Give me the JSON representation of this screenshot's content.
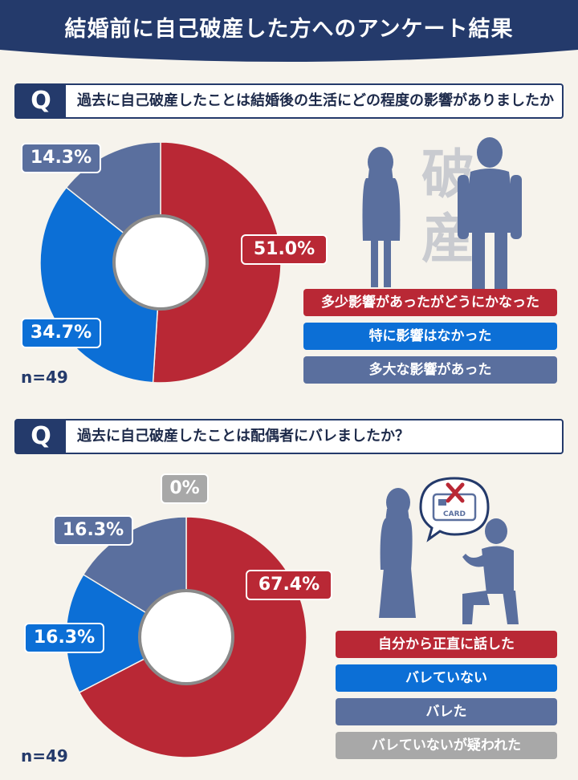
{
  "title": "結婚前に自己破産した方へのアンケート結果",
  "colors": {
    "navy": "#243a6b",
    "red": "#b92835",
    "blue": "#0c6fd6",
    "slate": "#5a6f9e",
    "gray": "#a8a8a8"
  },
  "illustration_text": {
    "kanji_1": "破",
    "kanji_2": "産",
    "card": "CARD"
  },
  "chart_data": [
    {
      "type": "pie",
      "question_mark": "Q",
      "question": "過去に自己破産したことは結婚後の生活にどの程度の影響がありましたか",
      "sample": "n=49",
      "slices": [
        {
          "label": "多少影響があったがどうにかなった",
          "value": 51.0,
          "display": "51.0%",
          "color": "#b92835"
        },
        {
          "label": "特に影響はなかった",
          "value": 34.7,
          "display": "34.7%",
          "color": "#0c6fd6"
        },
        {
          "label": "多大な影響があった",
          "value": 14.3,
          "display": "14.3%",
          "color": "#5a6f9e"
        }
      ]
    },
    {
      "type": "pie",
      "question_mark": "Q",
      "question": "過去に自己破産したことは配偶者にバレましたか？",
      "sample": "n=49",
      "slices": [
        {
          "label": "自分から正直に話した",
          "value": 67.4,
          "display": "67.4%",
          "color": "#b92835"
        },
        {
          "label": "バレていない",
          "value": 16.3,
          "display": "16.3%",
          "color": "#0c6fd6"
        },
        {
          "label": "バレた",
          "value": 16.3,
          "display": "16.3%",
          "color": "#5a6f9e"
        },
        {
          "label": "バレていないが疑われた",
          "value": 0,
          "display": "0%",
          "color": "#a8a8a8"
        }
      ]
    }
  ]
}
